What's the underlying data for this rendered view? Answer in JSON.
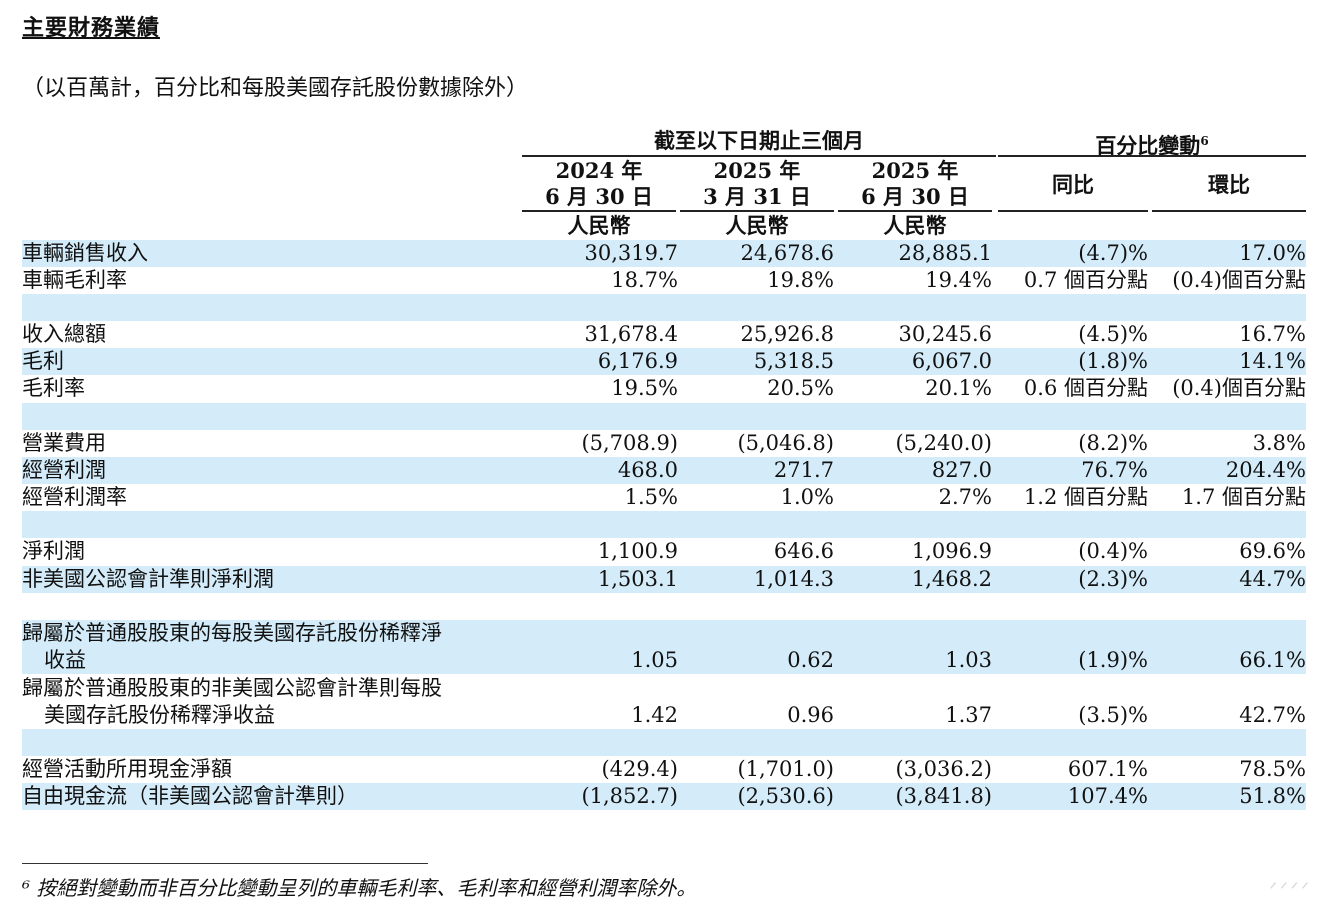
{
  "title": "主要財務業績",
  "subtitle": "（以百萬計，百分比和每股美國存託股份數據除外）",
  "header": {
    "group_left": "截至以下日期止三個月",
    "group_right": "百分比變動",
    "group_right_sup": "6",
    "cols": [
      {
        "year": "2024 年",
        "date": "6 月 30 日",
        "currency": "人民幣"
      },
      {
        "year": "2025 年",
        "date": "3 月 31 日",
        "currency": "人民幣"
      },
      {
        "year": "2025 年",
        "date": "6 月 30 日",
        "currency": "人民幣"
      }
    ],
    "yoy": "同比",
    "qoq": "環比"
  },
  "rows": [
    {
      "label": "車輛銷售收入",
      "v": [
        "30,319.7",
        "24,678.6",
        "28,885.1",
        "(4.7)%",
        "17.0%"
      ]
    },
    {
      "label": "車輛毛利率",
      "v": [
        "18.7%",
        "19.8%",
        "19.4%",
        "0.7 個百分點",
        "(0.4)個百分點"
      ]
    },
    {
      "label": "收入總額",
      "v": [
        "31,678.4",
        "25,926.8",
        "30,245.6",
        "(4.5)%",
        "16.7%"
      ]
    },
    {
      "label": "毛利",
      "v": [
        "6,176.9",
        "5,318.5",
        "6,067.0",
        "(1.8)%",
        "14.1%"
      ]
    },
    {
      "label": "毛利率",
      "v": [
        "19.5%",
        "20.5%",
        "20.1%",
        "0.6 個百分點",
        "(0.4)個百分點"
      ]
    },
    {
      "label": "營業費用",
      "v": [
        "(5,708.9)",
        "(5,046.8)",
        "(5,240.0)",
        "(8.2)%",
        "3.8%"
      ]
    },
    {
      "label": "經營利潤",
      "v": [
        "468.0",
        "271.7",
        "827.0",
        "76.7%",
        "204.4%"
      ]
    },
    {
      "label": "經營利潤率",
      "v": [
        "1.5%",
        "1.0%",
        "2.7%",
        "1.2 個百分點",
        "1.7 個百分點"
      ]
    },
    {
      "label": "淨利潤",
      "v": [
        "1,100.9",
        "646.6",
        "1,096.9",
        "(0.4)%",
        "69.6%"
      ]
    },
    {
      "label": "非美國公認會計準則淨利潤",
      "v": [
        "1,503.1",
        "1,014.3",
        "1,468.2",
        "(2.3)%",
        "44.7%"
      ]
    },
    {
      "label": "歸屬於普通股股東的每股美國存託股份稀釋淨",
      "label2": "收益",
      "v": [
        "1.05",
        "0.62",
        "1.03",
        "(1.9)%",
        "66.1%"
      ]
    },
    {
      "label": "歸屬於普通股股東的非美國公認會計準則每股",
      "label2": "美國存託股份稀釋淨收益",
      "v": [
        "1.42",
        "0.96",
        "1.37",
        "(3.5)%",
        "42.7%"
      ]
    },
    {
      "label": "經營活動所用現金淨額",
      "v": [
        "(429.4)",
        "(1,701.0)",
        "(3,036.2)",
        "607.1%",
        "78.5%"
      ]
    },
    {
      "label": "自由現金流（非美國公認會計準則）",
      "v": [
        "(1,852.7)",
        "(2,530.6)",
        "(3,841.8)",
        "107.4%",
        "51.8%"
      ]
    }
  ],
  "footnote": "⁶ 按絕對變動而非百分比變動呈列的車輛毛利率、毛利率和經營利潤率除外。",
  "watermark": "ᐟᐟᐟᐟ"
}
